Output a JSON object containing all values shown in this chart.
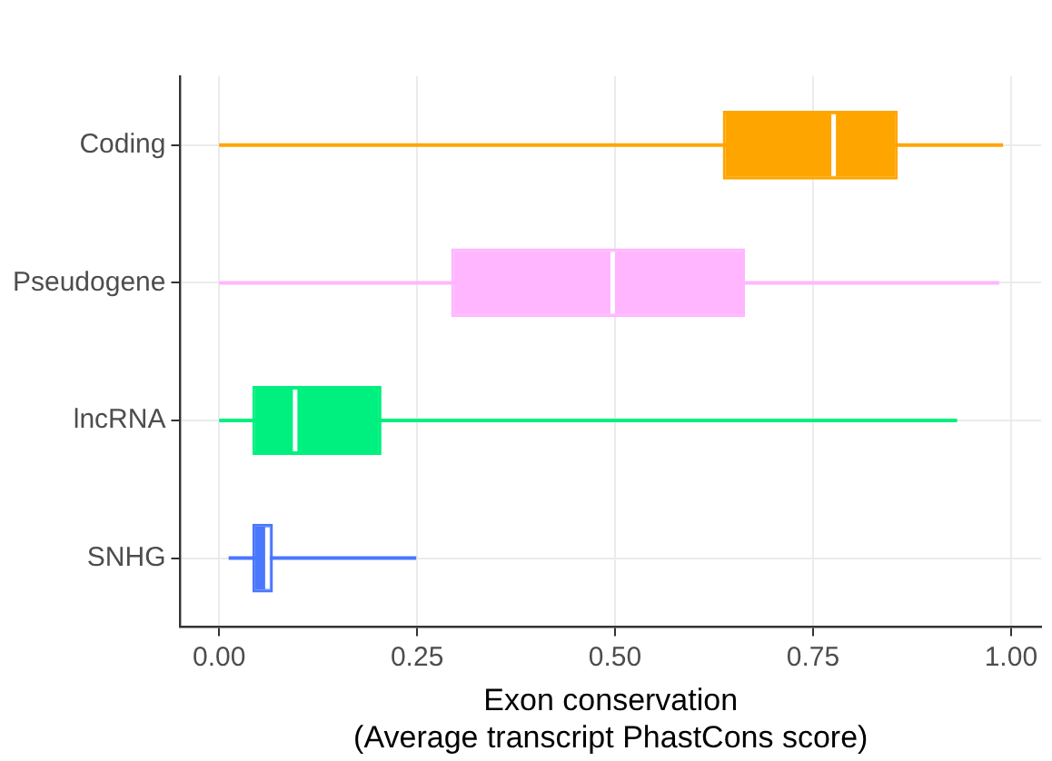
{
  "chart_data": {
    "type": "box",
    "orientation": "horizontal",
    "xlabel": "Exon conservation\n(Average transcript PhastCons score)",
    "categories": [
      "Coding",
      "Pseudogene",
      "lncRNA",
      "SNHG"
    ],
    "colors": [
      "#ffa500",
      "#ffb6ff",
      "#00f07f",
      "#4a77ff"
    ],
    "boxes": [
      {
        "low": 0.0,
        "q1": 0.636,
        "median": 0.776,
        "q3": 0.857,
        "high": 0.99
      },
      {
        "low": 0.0,
        "q1": 0.293,
        "median": 0.497,
        "q3": 0.664,
        "high": 0.985
      },
      {
        "low": 0.0,
        "q1": 0.042,
        "median": 0.096,
        "q3": 0.205,
        "high": 0.932
      },
      {
        "low": 0.012,
        "q1": 0.042,
        "median": 0.061,
        "q3": 0.068,
        "high": 0.249
      }
    ],
    "xlim": [
      -0.049,
      1.038
    ],
    "xticks": [
      {
        "value": 0,
        "label": "0.00"
      },
      {
        "value": 0.25,
        "label": "0.25"
      },
      {
        "value": 0.5,
        "label": "0.50"
      },
      {
        "value": 0.75,
        "label": "0.75"
      },
      {
        "value": 1,
        "label": "1.00"
      }
    ],
    "grid": true
  }
}
